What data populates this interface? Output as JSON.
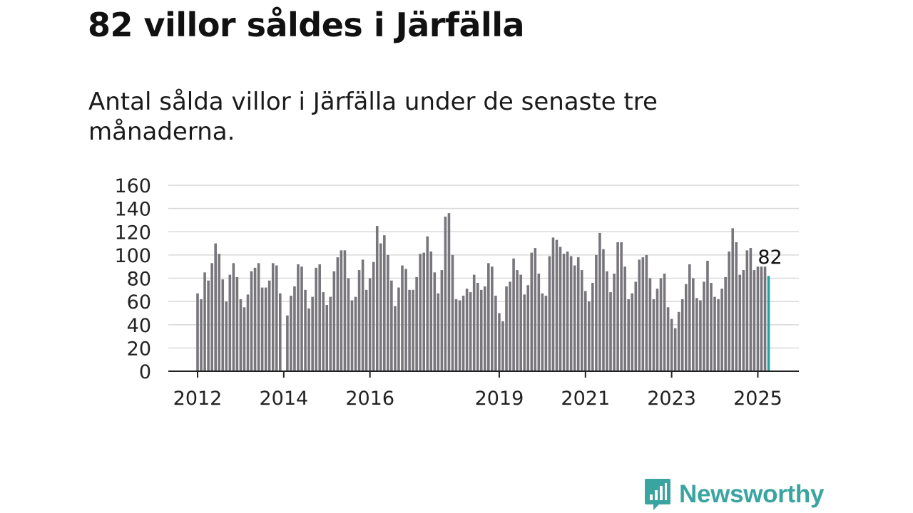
{
  "title": "82 villor såldes i Järfälla",
  "subtitle": "Antal sålda villor i Järfälla under de senaste tre månaderna.",
  "brand": {
    "name": "Newsworthy",
    "color": "#3aa5a0"
  },
  "chart_data": {
    "type": "bar",
    "x_start": "2012-01",
    "x_end": "2025-04",
    "ylim": [
      0,
      160
    ],
    "yticks": [
      0,
      20,
      40,
      60,
      80,
      100,
      120,
      140,
      160
    ],
    "xticks": [
      "2012",
      "2014",
      "2016",
      "2019",
      "2021",
      "2023",
      "2025"
    ],
    "grid": true,
    "bar_color": "#78767b",
    "highlight_color": "#21a5a2",
    "highlight_label": "82",
    "values": [
      67,
      62,
      85,
      78,
      93,
      110,
      101,
      79,
      60,
      83,
      93,
      81,
      62,
      55,
      66,
      86,
      89,
      93,
      72,
      72,
      78,
      93,
      91,
      67,
      0,
      48,
      65,
      73,
      92,
      90,
      70,
      54,
      64,
      89,
      92,
      68,
      57,
      64,
      86,
      98,
      104,
      104,
      80,
      61,
      64,
      87,
      96,
      70,
      80,
      94,
      125,
      110,
      117,
      100,
      78,
      56,
      72,
      91,
      88,
      70,
      70,
      81,
      101,
      102,
      116,
      103,
      85,
      67,
      87,
      133,
      136,
      100,
      62,
      61,
      65,
      71,
      68,
      83,
      76,
      70,
      73,
      93,
      90,
      65,
      50,
      43,
      73,
      77,
      97,
      87,
      83,
      66,
      74,
      102,
      106,
      84,
      67,
      65,
      99,
      115,
      113,
      107,
      101,
      103,
      99,
      91,
      98,
      87,
      69,
      60,
      76,
      100,
      119,
      105,
      86,
      68,
      84,
      111,
      111,
      90,
      62,
      67,
      77,
      96,
      98,
      100,
      80,
      62,
      71,
      80,
      84,
      55,
      45,
      37,
      51,
      62,
      75,
      92,
      80,
      63,
      61,
      77,
      95,
      76,
      64,
      62,
      71,
      81,
      103,
      123,
      111,
      83,
      87,
      104,
      106,
      87,
      90,
      90,
      90,
      82
    ]
  }
}
